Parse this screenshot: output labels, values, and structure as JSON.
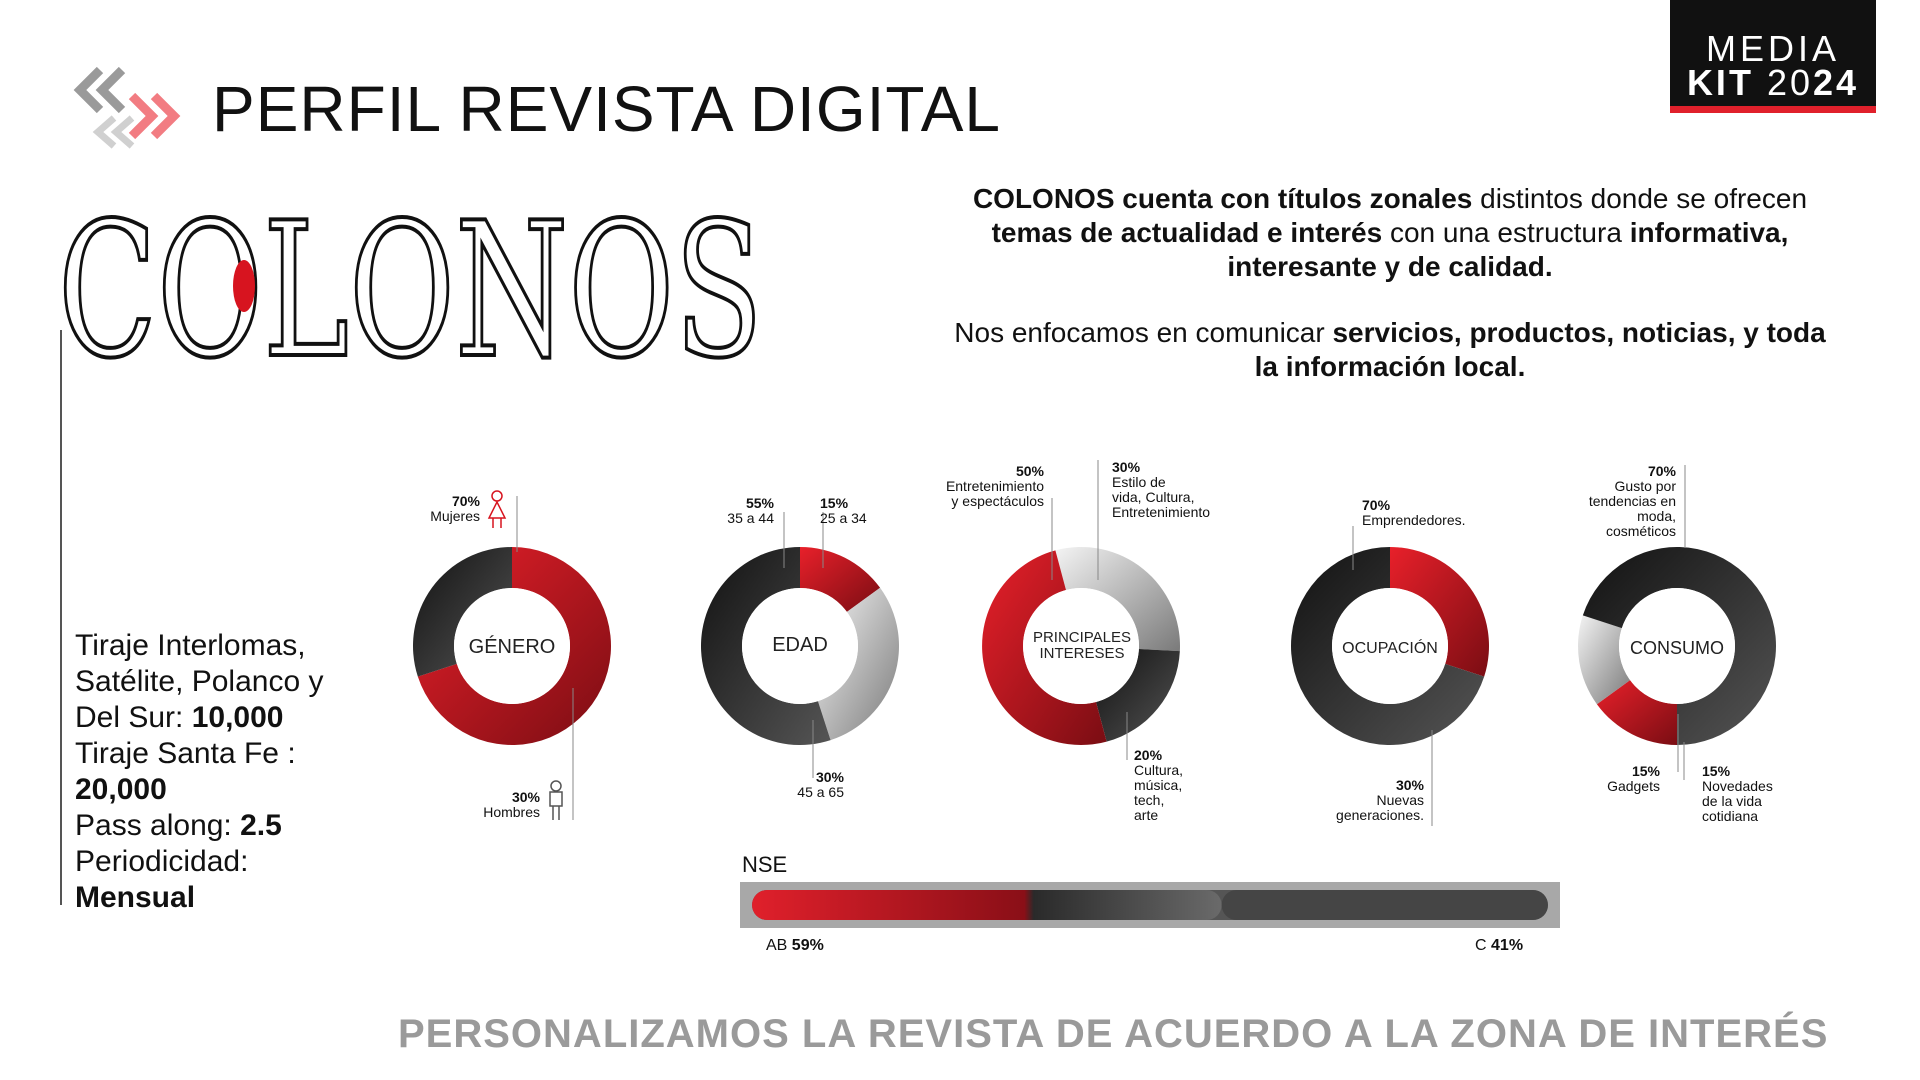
{
  "header": {
    "title": "PERFIL REVISTA DIGITAL",
    "badge_line1": "MEDIA",
    "badge_kit": "KIT",
    "badge_year_a": "20",
    "badge_year_b": "24"
  },
  "brand": {
    "logo_text": "COLONOS",
    "accent": "#d7141f"
  },
  "intro": {
    "p1_b1": "COLONOS cuenta con títulos zonales",
    "p1_t1": " distintos donde se ofrecen ",
    "p1_b2": "temas de actualidad e interés",
    "p1_t2": " con una estructura ",
    "p1_b3": "informativa, interesante y de calidad.",
    "p2_t1": "Nos enfocamos en comunicar ",
    "p2_b1": "servicios, productos, noticias, y toda la información local."
  },
  "stats": {
    "t1": "Tiraje Interlomas, Satélite, Polanco y Del Sur: ",
    "v1": "10,000",
    "t2": "Tiraje Santa Fe : ",
    "v2": "20,000",
    "t3": "Pass along: ",
    "v3": "2.5",
    "t4": "Periodicidad: ",
    "v4": "Mensual"
  },
  "footer": {
    "tagline": "PERSONALIZAMOS LA REVISTA DE ACUERDO A LA ZONA DE INTERÉS"
  },
  "icons": {
    "women": "female-icon",
    "men": "male-icon",
    "arrows": "chevron-arrows-icon"
  },
  "chart_data": [
    {
      "type": "pie",
      "title": "GÉNERO",
      "segments": [
        {
          "pct": "70%",
          "label": "Mujeres",
          "value": 70,
          "color": "#c8161e"
        },
        {
          "pct": "30%",
          "label": "Hombres",
          "value": 30,
          "color": "#2a2a2a"
        }
      ]
    },
    {
      "type": "pie",
      "title": "EDAD",
      "segments": [
        {
          "pct": "15%",
          "label": "25 a 34",
          "value": 15,
          "color": "#b51620"
        },
        {
          "pct": "30%",
          "label": "45 a 65",
          "value": 30,
          "color": "#cfcfcf"
        },
        {
          "pct": "55%",
          "label": "35 a 44",
          "value": 55,
          "color": "#3a3a3a"
        }
      ]
    },
    {
      "type": "pie",
      "title": "PRINCIPALES INTERESES",
      "title_lines": [
        "PRINCIPALES",
        "INTERESES"
      ],
      "segments": [
        {
          "pct": "30%",
          "label": "Estilo de vida, Cultura, Entretenimiento",
          "lines": [
            "Estilo de",
            "vida, Cultura,",
            "Entretenimiento"
          ],
          "value": 30,
          "color": "#d8d8d8"
        },
        {
          "pct": "20%",
          "label": "Cultura, música, tech, arte",
          "lines": [
            "Cultura,",
            "música,",
            "tech,",
            "arte"
          ],
          "value": 20,
          "color": "#3a3a3a"
        },
        {
          "pct": "50%",
          "label": "Entretenimiento y espectáculos",
          "lines": [
            "Entretenimiento",
            "y espectáculos"
          ],
          "value": 50,
          "color": "#c8161e"
        }
      ]
    },
    {
      "type": "pie",
      "title": "OCUPACIÓN",
      "segments": [
        {
          "pct": "30%",
          "label": "Nuevas generaciones.",
          "lines": [
            "Nuevas",
            "generaciones."
          ],
          "value": 30,
          "color": "#c8161e"
        },
        {
          "pct": "70%",
          "label": "Emprendedores.",
          "lines": [
            "Emprendedores."
          ],
          "value": 70,
          "color": "#3a3a3a"
        }
      ]
    },
    {
      "type": "pie",
      "title": "CONSUMO",
      "segments": [
        {
          "pct": "15%",
          "label": "Novedades de la vida cotidiana",
          "lines": [
            "Novedades",
            "de la vida",
            "cotidiana"
          ],
          "value": 15,
          "color": "#b51620"
        },
        {
          "pct": "15%",
          "label": "Gadgets",
          "lines": [
            "Gadgets"
          ],
          "value": 15,
          "color": "#e0e0e0"
        },
        {
          "pct": "70%",
          "label": "Gusto por tendencias en moda, cosméticos",
          "lines": [
            "Gusto por",
            "tendencias en",
            "moda,",
            "cosméticos"
          ],
          "value": 70,
          "color": "#3a3a3a"
        }
      ]
    },
    {
      "type": "bar",
      "title": "NSE",
      "categories": [
        "AB",
        "C"
      ],
      "values": [
        59,
        41
      ],
      "labels": [
        "59%",
        "41%"
      ]
    }
  ]
}
